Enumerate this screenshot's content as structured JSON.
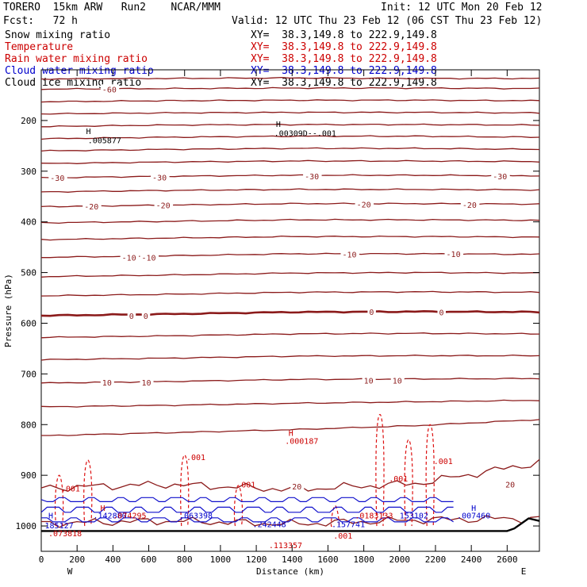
{
  "header": {
    "model": "TORERO  15km ARW   Run2    NCAR/MMM",
    "init": "Init: 12 UTC Mon 20 Feb 12",
    "fcst": "Fcst:   72 h",
    "valid": "Valid: 12 UTC Thu 23 Feb 12 (06 CST Thu 23 Feb 12)"
  },
  "legend": [
    {
      "label": "Snow mixing ratio",
      "xy": "XY=  38.3,149.8 to 222.9,149.8",
      "color": "#000000",
      "xy_color": "#000000"
    },
    {
      "label": "Temperature",
      "xy": "XY=  38.3,149.8 to 222.9,149.8",
      "color": "#cc0000",
      "xy_color": "#cc0000"
    },
    {
      "label": "Rain water mixing ratio",
      "xy": "XY=  38.3,149.8 to 222.9,149.8",
      "color": "#cc0000",
      "xy_color": "#cc0000"
    },
    {
      "label": "Cloud water mixing ratio",
      "xy": "XY=  38.3,149.8 to 222.9,149.8",
      "color": "#0000cc",
      "xy_color": "#0000cc"
    },
    {
      "label": "Cloud ice mixing ratio",
      "xy": "XY=  38.3,149.8 to 222.9,149.8",
      "color": "#000000",
      "xy_color": "#000000"
    }
  ],
  "chart_data": {
    "type": "line",
    "subtype": "vertical cross-section contour",
    "xlabel": "Distance (km)",
    "ylabel": "Pressure (hPa)",
    "xlim": [
      0,
      2780
    ],
    "ylim": [
      1050,
      100
    ],
    "x_ticks": [
      0,
      200,
      400,
      600,
      800,
      1000,
      1200,
      1400,
      1600,
      1800,
      2000,
      2200,
      2400,
      2600
    ],
    "y_ticks": [
      200,
      300,
      400,
      500,
      600,
      700,
      800,
      900,
      1000
    ],
    "endpoint_labels": {
      "left": "W",
      "right": "E"
    },
    "colors": {
      "temperature": "#8b1a1a",
      "rain": "#dd1111",
      "cloud_water": "#1111cc",
      "terrain": "#000000"
    },
    "temperature_contours": [
      {
        "p": [
          118,
          117,
          116,
          117,
          117
        ],
        "label": ""
      },
      {
        "p": [
          138,
          137,
          136,
          136,
          137
        ],
        "label": "-60"
      },
      {
        "p": [
          163,
          161,
          160,
          160,
          161
        ],
        "label": ""
      },
      {
        "p": [
          187,
          185,
          184,
          184,
          185
        ],
        "label": ""
      },
      {
        "p": [
          212,
          209,
          208,
          208,
          209
        ],
        "label": ""
      },
      {
        "p": [
          236,
          233,
          231,
          231,
          233
        ],
        "label": ""
      },
      {
        "p": [
          260,
          257,
          255,
          255,
          257
        ],
        "label": ""
      },
      {
        "p": [
          285,
          282,
          280,
          280,
          281
        ],
        "label": ""
      },
      {
        "p": [
          313,
          310,
          308,
          308,
          309
        ],
        "label": "-30"
      },
      {
        "p": [
          341,
          338,
          336,
          336,
          337
        ],
        "label": ""
      },
      {
        "p": [
          370,
          367,
          364,
          364,
          365
        ],
        "label": "-20"
      },
      {
        "p": [
          402,
          399,
          396,
          396,
          397
        ],
        "label": ""
      },
      {
        "p": [
          435,
          432,
          429,
          429,
          430
        ],
        "label": ""
      },
      {
        "p": [
          470,
          467,
          463,
          463,
          464
        ],
        "label": "-10"
      },
      {
        "p": [
          508,
          505,
          501,
          500,
          501
        ],
        "label": ""
      },
      {
        "p": [
          546,
          543,
          539,
          538,
          539
        ],
        "label": ""
      },
      {
        "p": [
          585,
          582,
          578,
          577,
          578
        ],
        "label": "0",
        "bold": true
      },
      {
        "p": [
          628,
          625,
          621,
          620,
          621
        ],
        "label": ""
      },
      {
        "p": [
          672,
          669,
          665,
          664,
          664
        ],
        "label": ""
      },
      {
        "p": [
          718,
          715,
          711,
          710,
          709
        ],
        "label": "10"
      },
      {
        "p": [
          765,
          762,
          758,
          755,
          752
        ],
        "label": ""
      },
      {
        "p": [
          822,
          816,
          810,
          802,
          790
        ],
        "label": ""
      },
      {
        "p": [
          925,
          918,
          928,
          916,
          875
        ],
        "label": "20"
      },
      {
        "p": [
          995,
          990,
          996,
          988,
          985
        ],
        "label": ""
      }
    ],
    "contour_labels": [
      {
        "text": "-60",
        "x": 340,
        "p": 138
      },
      {
        "text": "-30",
        "x": 50,
        "p": 313
      },
      {
        "text": "-30",
        "x": 620,
        "p": 312
      },
      {
        "text": "-30",
        "x": 1470,
        "p": 310
      },
      {
        "text": "-30",
        "x": 2520,
        "p": 310
      },
      {
        "text": "-20",
        "x": 240,
        "p": 369
      },
      {
        "text": "-20",
        "x": 640,
        "p": 367
      },
      {
        "text": "-20",
        "x": 1760,
        "p": 365
      },
      {
        "text": "-20",
        "x": 2350,
        "p": 366
      },
      {
        "text": "-10",
        "x": 450,
        "p": 470
      },
      {
        "text": "-10",
        "x": 560,
        "p": 470
      },
      {
        "text": "-10",
        "x": 1680,
        "p": 464
      },
      {
        "text": "-10",
        "x": 2260,
        "p": 463
      },
      {
        "text": "0",
        "x": 490,
        "p": 585
      },
      {
        "text": "0",
        "x": 570,
        "p": 585
      },
      {
        "text": "0",
        "x": 1830,
        "p": 577
      },
      {
        "text": "0",
        "x": 2220,
        "p": 578
      },
      {
        "text": "10",
        "x": 340,
        "p": 717
      },
      {
        "text": "10",
        "x": 560,
        "p": 717
      },
      {
        "text": "10",
        "x": 1800,
        "p": 713
      },
      {
        "text": "10",
        "x": 1960,
        "p": 713
      },
      {
        "text": "20",
        "x": 1400,
        "p": 922
      },
      {
        "text": "20",
        "x": 2590,
        "p": 918
      }
    ],
    "maxima_labels": [
      {
        "text": "H",
        "x": 250,
        "p": 227,
        "color": "#000000"
      },
      {
        "text": ".005877",
        "x": 260,
        "p": 245,
        "color": "#000000"
      },
      {
        "text": "H",
        "x": 1310,
        "p": 213,
        "color": "#000000"
      },
      {
        "text": ".00309D--.001",
        "x": 1300,
        "p": 231,
        "color": "#000000"
      },
      {
        "text": "H",
        "x": 1380,
        "p": 822,
        "color": "#cc0000"
      },
      {
        "text": ".000187",
        "x": 1360,
        "p": 838,
        "color": "#cc0000"
      },
      {
        "text": ".001",
        "x": 810,
        "p": 870,
        "color": "#cc0000"
      },
      {
        "text": ".001",
        "x": 110,
        "p": 932,
        "color": "#cc0000"
      },
      {
        "text": ".001",
        "x": 1090,
        "p": 924,
        "color": "#cc0000"
      },
      {
        "text": ".001",
        "x": 1940,
        "p": 912,
        "color": "#cc0000"
      },
      {
        "text": ".001",
        "x": 2190,
        "p": 878,
        "color": "#cc0000"
      },
      {
        "text": "H",
        "x": 40,
        "p": 985,
        "color": "#0000cc"
      },
      {
        "text": "185127",
        "x": 20,
        "p": 1005,
        "color": "#0000cc"
      },
      {
        "text": ".073818",
        "x": 40,
        "p": 1020,
        "color": "#cc0000"
      },
      {
        "text": "H",
        "x": 330,
        "p": 970,
        "color": "#cc0000"
      },
      {
        "text": ".142880",
        "x": 290,
        "p": 985,
        "color": "#0000cc"
      },
      {
        "text": ".074295",
        "x": 400,
        "p": 985,
        "color": "#cc0000"
      },
      {
        "text": ".063398",
        "x": 770,
        "p": 985,
        "color": "#0000cc"
      },
      {
        "text": ".242448",
        "x": 1180,
        "p": 1002,
        "color": "#0000cc"
      },
      {
        "text": ".113357",
        "x": 1270,
        "p": 1044,
        "color": "#cc0000"
      },
      {
        "text": ".157741",
        "x": 1620,
        "p": 1002,
        "color": "#0000cc"
      },
      {
        "text": ".001",
        "x": 1630,
        "p": 1025,
        "color": "#cc0000"
      },
      {
        "text": ".0183133",
        "x": 1750,
        "p": 985,
        "color": "#cc0000"
      },
      {
        "text": "153102",
        "x": 2000,
        "p": 985,
        "color": "#0000cc"
      },
      {
        "text": "H",
        "x": 2400,
        "p": 970,
        "color": "#0000cc"
      },
      {
        "text": ".007460",
        "x": 2320,
        "p": 985,
        "color": "#0000cc"
      }
    ],
    "terrain": [
      [
        0,
        1010
      ],
      [
        2600,
        1010
      ],
      [
        2640,
        1005
      ],
      [
        2680,
        995
      ],
      [
        2720,
        985
      ],
      [
        2780,
        990
      ]
    ]
  }
}
